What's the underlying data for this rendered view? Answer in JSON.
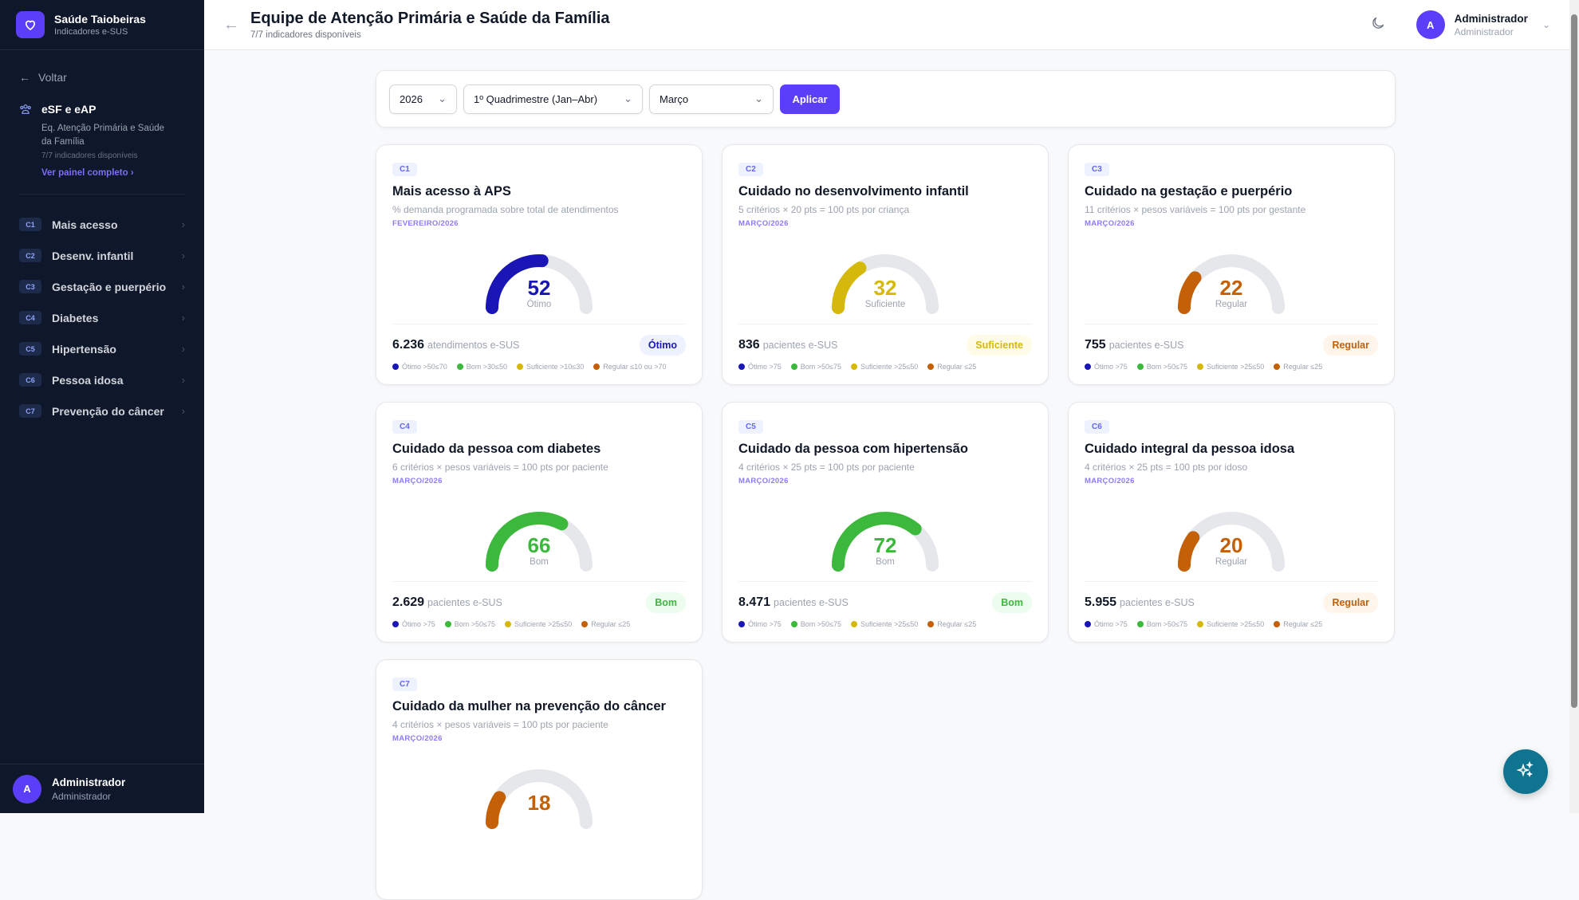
{
  "brand": {
    "title": "Saúde Taiobeiras",
    "subtitle": "Indicadores e-SUS",
    "icon": "heart-icon"
  },
  "sidebar": {
    "back": "Voltar",
    "group": {
      "title": "eSF e eAP",
      "desc": "Eq. Atenção Primária e Saúde da Família",
      "count": "7/7 indicadores disponíveis",
      "link": "Ver painel completo"
    },
    "items": [
      {
        "code": "C1",
        "label": "Mais acesso"
      },
      {
        "code": "C2",
        "label": "Desenv. infantil"
      },
      {
        "code": "C3",
        "label": "Gestação e puerpério"
      },
      {
        "code": "C4",
        "label": "Diabetes"
      },
      {
        "code": "C5",
        "label": "Hipertensão"
      },
      {
        "code": "C6",
        "label": "Pessoa idosa"
      },
      {
        "code": "C7",
        "label": "Prevenção do câncer"
      }
    ],
    "user": {
      "initial": "A",
      "name": "Administrador",
      "role": "Administrador"
    }
  },
  "header": {
    "title": "Equipe de Atenção Primária e Saúde da Família",
    "subtitle": "7/7 indicadores disponíveis",
    "user": {
      "initial": "A",
      "name": "Administrador",
      "role": "Administrador"
    }
  },
  "filters": {
    "year": "2026",
    "period": "1º Quadrimestre (Jan–Abr)",
    "month": "Março",
    "apply": "Aplicar"
  },
  "colors": {
    "accent": "#5b3ff8",
    "otimo": "#1a16b5",
    "bom": "#3cb83c",
    "suficiente": "#d4b90a",
    "regular": "#c46008",
    "track": "#e5e7eb",
    "fab": "#0e7490"
  },
  "cards": [
    {
      "code": "C1",
      "title": "Mais acesso à APS",
      "subtitle": "% demanda programada sobre total de atendimentos",
      "date": "FEVEREIRO/2026",
      "value": 52,
      "status": "Ótimo",
      "level": "otimo",
      "count": "6.236",
      "unit": "atendimentos e-SUS",
      "legend": [
        "Ótimo >50≤70",
        "Bom >30≤50",
        "Suficiente >10≤30",
        "Regular ≤10 ou >70"
      ]
    },
    {
      "code": "C2",
      "title": "Cuidado no desenvolvimento infantil",
      "subtitle": "5 critérios × 20 pts = 100 pts por criança",
      "date": "MARÇO/2026",
      "value": 32,
      "status": "Suficiente",
      "level": "suficiente",
      "count": "836",
      "unit": "pacientes e-SUS",
      "legend": [
        "Ótimo >75",
        "Bom >50≤75",
        "Suficiente >25≤50",
        "Regular ≤25"
      ]
    },
    {
      "code": "C3",
      "title": "Cuidado na gestação e puerpério",
      "subtitle": "11 critérios × pesos variáveis = 100 pts por gestante",
      "date": "MARÇO/2026",
      "value": 22,
      "status": "Regular",
      "level": "regular",
      "count": "755",
      "unit": "pacientes e-SUS",
      "legend": [
        "Ótimo >75",
        "Bom >50≤75",
        "Suficiente >25≤50",
        "Regular ≤25"
      ]
    },
    {
      "code": "C4",
      "title": "Cuidado da pessoa com diabetes",
      "subtitle": "6 critérios × pesos variáveis = 100 pts por paciente",
      "date": "MARÇO/2026",
      "value": 66,
      "status": "Bom",
      "level": "bom",
      "count": "2.629",
      "unit": "pacientes e-SUS",
      "legend": [
        "Ótimo >75",
        "Bom >50≤75",
        "Suficiente >25≤50",
        "Regular ≤25"
      ]
    },
    {
      "code": "C5",
      "title": "Cuidado da pessoa com hipertensão",
      "subtitle": "4 critérios × 25 pts = 100 pts por paciente",
      "date": "MARÇO/2026",
      "value": 72,
      "status": "Bom",
      "level": "bom",
      "count": "8.471",
      "unit": "pacientes e-SUS",
      "legend": [
        "Ótimo >75",
        "Bom >50≤75",
        "Suficiente >25≤50",
        "Regular ≤25"
      ]
    },
    {
      "code": "C6",
      "title": "Cuidado integral da pessoa idosa",
      "subtitle": "4 critérios × 25 pts = 100 pts por idoso",
      "date": "MARÇO/2026",
      "value": 20,
      "status": "Regular",
      "level": "regular",
      "count": "5.955",
      "unit": "pacientes e-SUS",
      "legend": [
        "Ótimo >75",
        "Bom >50≤75",
        "Suficiente >25≤50",
        "Regular ≤25"
      ]
    },
    {
      "code": "C7",
      "title": "Cuidado da mulher na prevenção do câncer",
      "subtitle": "4 critérios × pesos variáveis = 100 pts por paciente",
      "date": "MARÇO/2026",
      "value": 18,
      "level": "regular"
    }
  ]
}
